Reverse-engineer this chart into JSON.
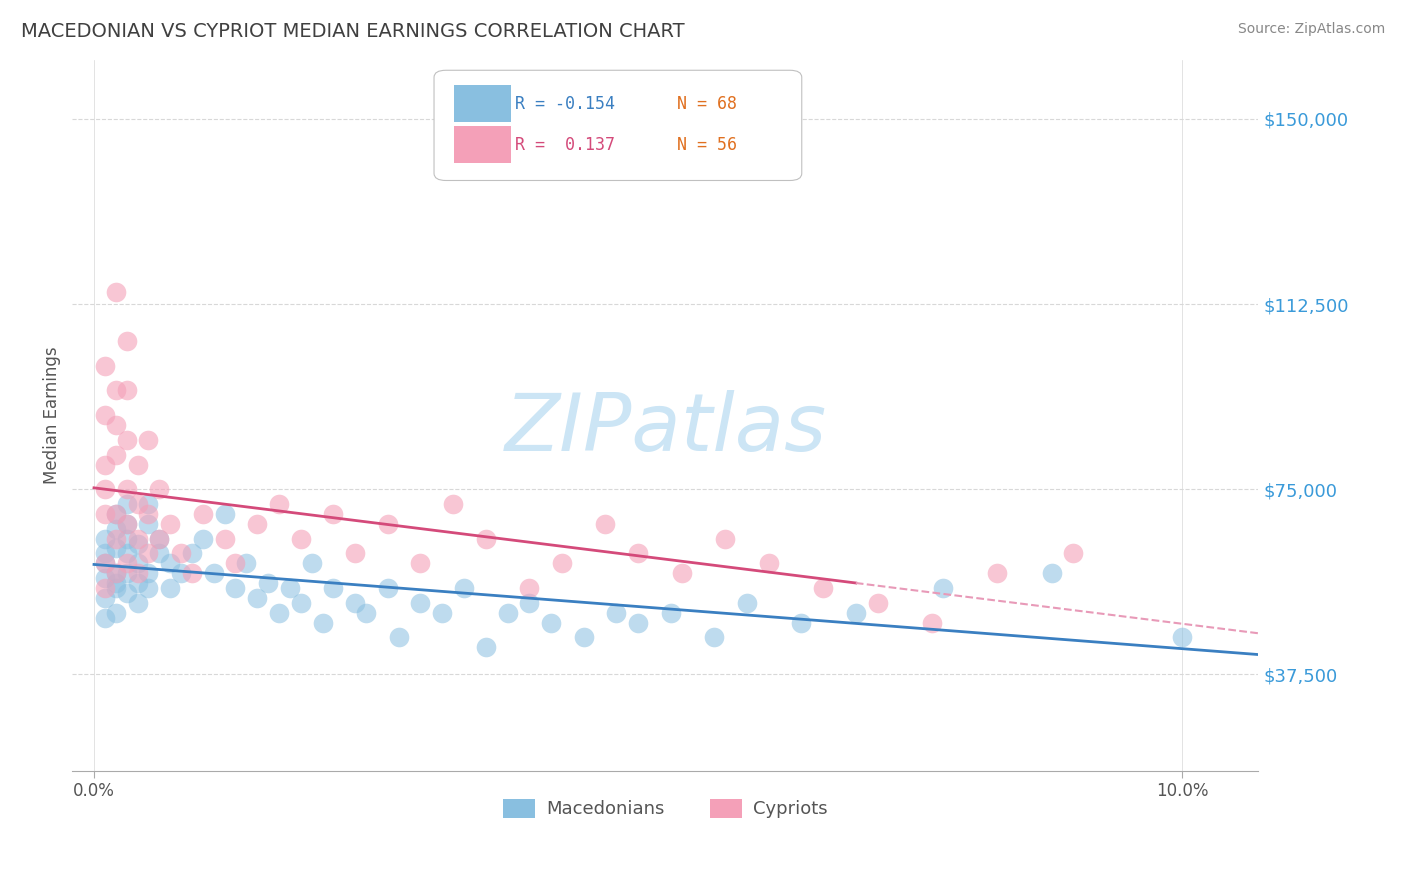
{
  "title": "MACEDONIAN VS CYPRIOT MEDIAN EARNINGS CORRELATION CHART",
  "source_text": "Source: ZipAtlas.com",
  "ylabel": "Median Earnings",
  "ytick_labels": [
    "$37,500",
    "$75,000",
    "$112,500",
    "$150,000"
  ],
  "ytick_values": [
    37500,
    75000,
    112500,
    150000
  ],
  "ymin": 18000,
  "ymax": 162000,
  "xmin": -0.002,
  "xmax": 0.107,
  "legend_blue_R": "R = -0.154",
  "legend_blue_N": "N = 68",
  "legend_pink_R": "R =  0.137",
  "legend_pink_N": "N = 56",
  "legend_blue_name": "Macedonians",
  "legend_pink_name": "Cypriots",
  "blue_color": "#89bfe0",
  "pink_color": "#f4a0b8",
  "blue_line_color": "#3a7fc1",
  "pink_line_color": "#d44a7a",
  "pink_dash_color": "#e89ab8",
  "watermark_text": "ZIPatlas",
  "watermark_color": "#cce5f5",
  "grid_color": "#d8d8d8",
  "title_color": "#404040",
  "ytick_color": "#3a9ad9",
  "source_color": "#888888",
  "macedonian_x": [
    0.001,
    0.001,
    0.001,
    0.001,
    0.001,
    0.001,
    0.002,
    0.002,
    0.002,
    0.002,
    0.002,
    0.002,
    0.002,
    0.003,
    0.003,
    0.003,
    0.003,
    0.003,
    0.003,
    0.004,
    0.004,
    0.004,
    0.004,
    0.005,
    0.005,
    0.005,
    0.005,
    0.006,
    0.006,
    0.007,
    0.007,
    0.008,
    0.009,
    0.01,
    0.011,
    0.012,
    0.013,
    0.014,
    0.015,
    0.016,
    0.017,
    0.018,
    0.019,
    0.02,
    0.021,
    0.022,
    0.024,
    0.025,
    0.027,
    0.028,
    0.03,
    0.032,
    0.034,
    0.036,
    0.038,
    0.04,
    0.042,
    0.045,
    0.048,
    0.05,
    0.053,
    0.057,
    0.06,
    0.065,
    0.07,
    0.078,
    0.088,
    0.1
  ],
  "macedonian_y": [
    62000,
    57000,
    53000,
    49000,
    65000,
    60000,
    58000,
    55000,
    50000,
    67000,
    63000,
    70000,
    56000,
    62000,
    58000,
    54000,
    68000,
    65000,
    72000,
    60000,
    56000,
    64000,
    52000,
    68000,
    72000,
    58000,
    55000,
    65000,
    62000,
    60000,
    55000,
    58000,
    62000,
    65000,
    58000,
    70000,
    55000,
    60000,
    53000,
    56000,
    50000,
    55000,
    52000,
    60000,
    48000,
    55000,
    52000,
    50000,
    55000,
    45000,
    52000,
    50000,
    55000,
    43000,
    50000,
    52000,
    48000,
    45000,
    50000,
    48000,
    50000,
    45000,
    52000,
    48000,
    50000,
    55000,
    58000,
    45000
  ],
  "cypriot_x": [
    0.001,
    0.001,
    0.001,
    0.001,
    0.001,
    0.001,
    0.001,
    0.002,
    0.002,
    0.002,
    0.002,
    0.002,
    0.002,
    0.002,
    0.003,
    0.003,
    0.003,
    0.003,
    0.003,
    0.003,
    0.004,
    0.004,
    0.004,
    0.004,
    0.005,
    0.005,
    0.005,
    0.006,
    0.006,
    0.007,
    0.008,
    0.009,
    0.01,
    0.012,
    0.013,
    0.015,
    0.017,
    0.019,
    0.022,
    0.024,
    0.027,
    0.03,
    0.033,
    0.036,
    0.04,
    0.043,
    0.047,
    0.05,
    0.054,
    0.058,
    0.062,
    0.067,
    0.072,
    0.077,
    0.083,
    0.09
  ],
  "cypriot_y": [
    60000,
    70000,
    80000,
    55000,
    90000,
    100000,
    75000,
    115000,
    88000,
    70000,
    95000,
    65000,
    58000,
    82000,
    75000,
    68000,
    85000,
    60000,
    105000,
    95000,
    72000,
    65000,
    80000,
    58000,
    70000,
    62000,
    85000,
    75000,
    65000,
    68000,
    62000,
    58000,
    70000,
    65000,
    60000,
    68000,
    72000,
    65000,
    70000,
    62000,
    68000,
    60000,
    72000,
    65000,
    55000,
    60000,
    68000,
    62000,
    58000,
    65000,
    60000,
    55000,
    52000,
    48000,
    58000,
    62000
  ]
}
